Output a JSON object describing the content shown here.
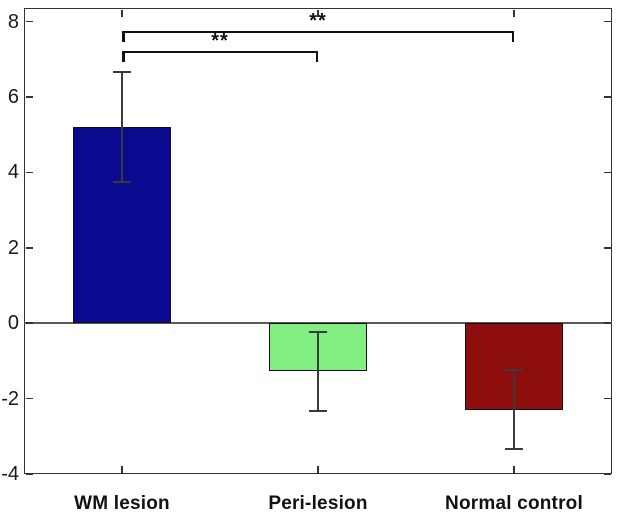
{
  "chart_data": {
    "type": "bar",
    "title": "",
    "xlabel": "",
    "ylabel": "",
    "categories": [
      "WM lesion",
      "Peri-lesion",
      "Normal control"
    ],
    "values": [
      5.2,
      -1.28,
      -2.3
    ],
    "errors": [
      1.45,
      1.05,
      1.05
    ],
    "bar_colors": [
      "#0a0a90",
      "#80ee80",
      "#8e0e0e"
    ],
    "bar_edge_color": "#101010",
    "bar_width_fraction": 0.5,
    "baseline": 0,
    "grid": false,
    "legend": null,
    "ylim": [
      -4,
      8.36
    ],
    "yticks": [
      -4,
      -2,
      0,
      2,
      4,
      6,
      8
    ],
    "significance": [
      {
        "from": 0,
        "to": 2,
        "label": "**",
        "y": 7.75
      },
      {
        "from": 0,
        "to": 1,
        "label": "**",
        "y": 7.22
      }
    ]
  },
  "colors": {
    "background": "#ffffff",
    "axis_frame": "#333333",
    "tick": "#333333",
    "tick_label": "#1a1a1a",
    "zero_line": "#5a5a5a",
    "error_bar": "#3a3a3a",
    "bracket": "#111111"
  }
}
